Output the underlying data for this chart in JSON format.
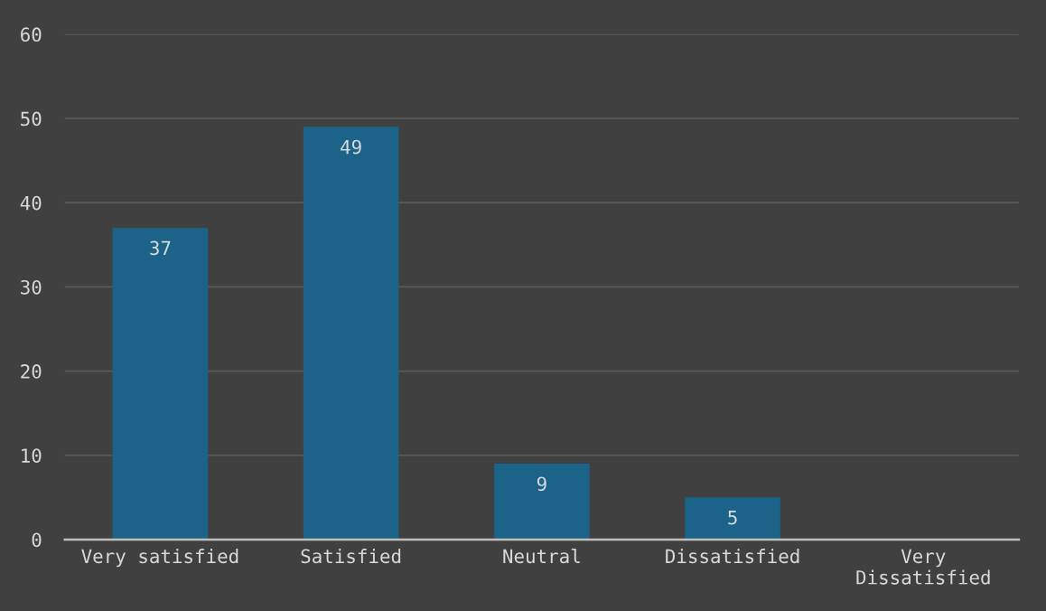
{
  "chart_data": {
    "type": "bar",
    "categories": [
      "Very satisfied",
      "Satisfied",
      "Neutral",
      "Dissatisfied",
      "Very Dissatisfied"
    ],
    "values": [
      37,
      49,
      9,
      5,
      0
    ],
    "color": "#1b6389",
    "value_labels": [
      "37",
      "49",
      "9",
      "5",
      null
    ],
    "ylim": [
      0,
      60
    ],
    "yticks": [
      0,
      10,
      20,
      30,
      40,
      50,
      60
    ],
    "grid": "y",
    "legend": false
  }
}
